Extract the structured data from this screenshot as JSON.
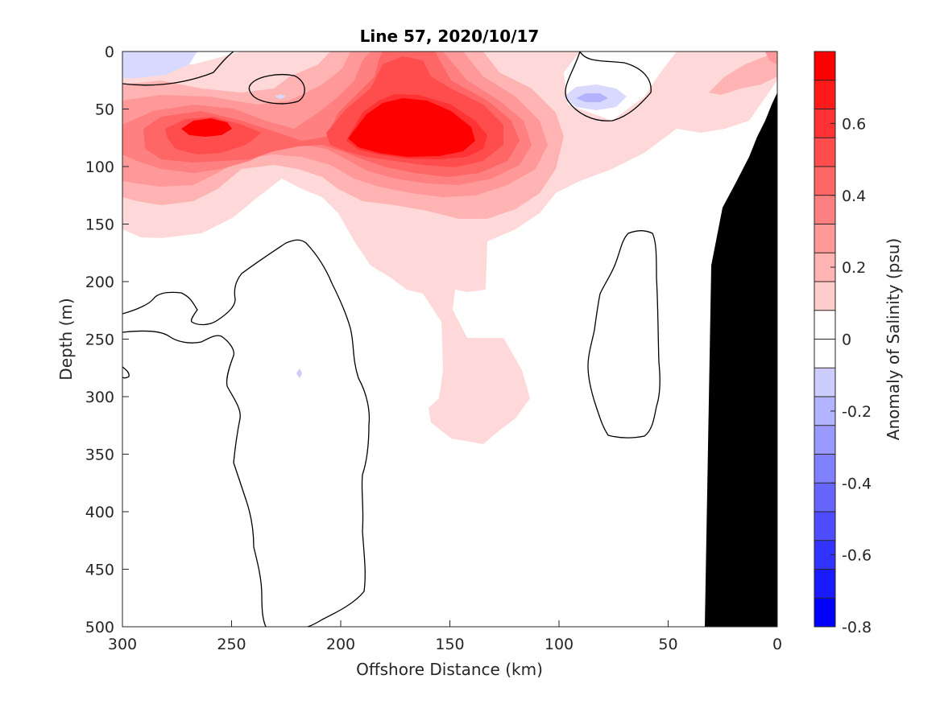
{
  "chart_data": {
    "type": "contour",
    "title": "Line 57, 2020/10/17",
    "xlabel": "Offshore Distance (km)",
    "ylabel": "Depth (m)",
    "colorbar_label": "Anomaly of Salinity (psu)",
    "x_ticks": [
      "300",
      "250",
      "200",
      "150",
      "100",
      "50",
      "0"
    ],
    "y_ticks": [
      "0",
      "50",
      "100",
      "150",
      "200",
      "250",
      "300",
      "350",
      "400",
      "450",
      "500"
    ],
    "colorbar_ticks": [
      "0.6",
      "0.4",
      "0.2",
      "0",
      "-0.2",
      "-0.4",
      "-0.6",
      "-0.8"
    ],
    "xlim": [
      300,
      0
    ],
    "ylim": [
      0,
      500
    ],
    "y_reversed": true,
    "clim": [
      -0.8,
      0.8
    ],
    "contour_interval": 0.1,
    "zero_contour_lines": true,
    "bathymetry_color": "#000000",
    "colormap": [
      "#0000ff",
      "#1a1aff",
      "#3333ff",
      "#4d4dff",
      "#6666ff",
      "#8080ff",
      "#9999ff",
      "#b3b3ff",
      "#ccccff",
      "#ffffff",
      "#ffffff",
      "#ffcccc",
      "#ffb3b3",
      "#ff9999",
      "#ff8080",
      "#ff6666",
      "#ff4d4d",
      "#ff3333",
      "#ff1a1a",
      "#ff0000"
    ]
  }
}
